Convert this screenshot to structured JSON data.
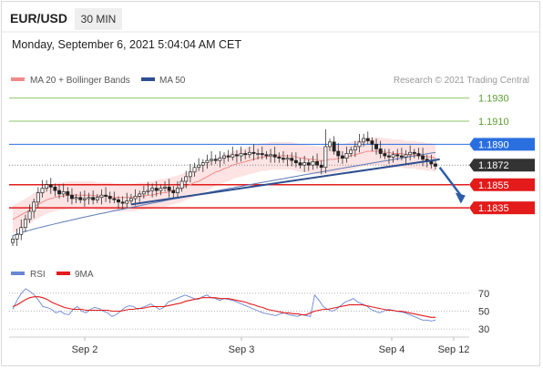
{
  "header": {
    "symbol": "EUR/USD",
    "timeframe": "30 MIN",
    "datetime": "Monday, September 6, 2021 5:04:04 AM CET"
  },
  "legend": {
    "ma20": {
      "label": "MA 20 + Bollinger Bands",
      "color": "#f08a8a"
    },
    "ma50": {
      "label": "MA 50",
      "color": "#2e4f8f"
    },
    "copyright": "Research © 2021 Trading Central"
  },
  "rsi_legend": {
    "rsi": {
      "label": "RSI",
      "color": "#6b86d6"
    },
    "ma9": {
      "label": "9MA",
      "color": "#e41b1b"
    }
  },
  "chart_data": [
    {
      "type": "candlestick",
      "ylim": [
        1.1802,
        1.1936
      ],
      "price_levels": [
        {
          "value": 1.193,
          "label": "1.1930",
          "color": "#8fc46a",
          "kind": "resistance-text"
        },
        {
          "value": 1.191,
          "label": "1.1910",
          "color": "#8fc46a",
          "kind": "resistance-text"
        },
        {
          "value": 1.189,
          "label": "1.1890",
          "color": "#2a6fe0",
          "kind": "badge"
        },
        {
          "value": 1.1872,
          "label": "1.1872",
          "color": "#333333",
          "kind": "badge"
        },
        {
          "value": 1.1855,
          "label": "1.1855",
          "color": "#e31b1b",
          "kind": "badge"
        },
        {
          "value": 1.1835,
          "label": "1.1835",
          "color": "#e31b1b",
          "kind": "badge"
        }
      ],
      "x_ticks": [
        "Sep 2",
        "Sep 3",
        "Sep 4",
        "Sep 12"
      ],
      "close": [
        1.1808,
        1.1812,
        1.1818,
        1.1825,
        1.1832,
        1.184,
        1.1848,
        1.1852,
        1.1855,
        1.1853,
        1.185,
        1.1847,
        1.1849,
        1.1846,
        1.1843,
        1.1844,
        1.1842,
        1.1843,
        1.1844,
        1.1842,
        1.1844,
        1.1846,
        1.1845,
        1.1843,
        1.1842,
        1.184,
        1.1839,
        1.1841,
        1.1843,
        1.1845,
        1.1847,
        1.1849,
        1.185,
        1.1852,
        1.185,
        1.1852,
        1.1853,
        1.185,
        1.1848,
        1.1852,
        1.1858,
        1.1862,
        1.1866,
        1.187,
        1.1872,
        1.1874,
        1.1876,
        1.1877,
        1.1876,
        1.1878,
        1.188,
        1.1879,
        1.1881,
        1.188,
        1.1882,
        1.1881,
        1.1883,
        1.1882,
        1.1882,
        1.1881,
        1.188,
        1.1881,
        1.1879,
        1.1878,
        1.1877,
        1.1878,
        1.1876,
        1.1874,
        1.1872,
        1.1874,
        1.1872,
        1.1875,
        1.1872,
        1.187,
        1.1888,
        1.1892,
        1.1884,
        1.188,
        1.1878,
        1.1882,
        1.1885,
        1.1888,
        1.1892,
        1.1895,
        1.1893,
        1.189,
        1.1886,
        1.1882,
        1.188,
        1.1879,
        1.1881,
        1.188,
        1.1879,
        1.1881,
        1.1883,
        1.1882,
        1.188,
        1.1877,
        1.1875,
        1.1873,
        1.1871
      ],
      "ma20": [
        1.1825,
        1.1827,
        1.1829,
        1.1831,
        1.1833,
        1.1836,
        1.1838,
        1.184,
        1.1842,
        1.1843,
        1.1844,
        1.1845,
        1.1845,
        1.1846,
        1.1846,
        1.1846,
        1.1846,
        1.1846,
        1.1846,
        1.1846,
        1.1845,
        1.1845,
        1.1845,
        1.1845,
        1.1844,
        1.1844,
        1.1844,
        1.1844,
        1.1844,
        1.1844,
        1.1845,
        1.1845,
        1.1846,
        1.1846,
        1.1847,
        1.1848,
        1.1848,
        1.1849,
        1.185,
        1.1851,
        1.1852,
        1.1854,
        1.1855,
        1.1857,
        1.1858,
        1.186,
        1.1862,
        1.1864,
        1.1866,
        1.1867,
        1.1869,
        1.187,
        1.1872,
        1.1873,
        1.1874,
        1.1875,
        1.1876,
        1.1877,
        1.1878,
        1.1879,
        1.1879,
        1.188,
        1.188,
        1.188,
        1.188,
        1.188,
        1.188,
        1.1879,
        1.1878,
        1.1878,
        1.1877,
        1.1877,
        1.1876,
        1.1876,
        1.1876,
        1.1877,
        1.1877,
        1.1878,
        1.1878,
        1.1879,
        1.188,
        1.1881,
        1.1882,
        1.1883,
        1.1884,
        1.1884,
        1.1884,
        1.1884,
        1.1883,
        1.1883,
        1.1882,
        1.1882,
        1.1882,
        1.1881,
        1.1881,
        1.1881,
        1.188,
        1.188,
        1.1879,
        1.1879,
        1.1878
      ],
      "band_width": 0.0012,
      "ma50_start": 1.1811,
      "ma50_end": 1.1883,
      "trendline": {
        "from": [
          28,
          1.1838
        ],
        "to": [
          101,
          1.1877
        ],
        "color": "#2e4f8f"
      },
      "forecast_arrow": {
        "from": [
          101,
          1.187
        ],
        "to": [
          106,
          1.1841
        ],
        "color": "#2a5ca8"
      }
    },
    {
      "type": "line",
      "title": "RSI",
      "ylim": [
        25,
        80
      ],
      "y_ticks": [
        70,
        50,
        30
      ],
      "series": [
        {
          "name": "RSI",
          "color": "#6b86d6",
          "values": [
            52,
            62,
            70,
            75,
            72,
            68,
            62,
            55,
            54,
            52,
            48,
            50,
            47,
            46,
            52,
            55,
            50,
            48,
            52,
            54,
            53,
            50,
            48,
            44,
            46,
            50,
            54,
            56,
            55,
            52,
            54,
            56,
            58,
            55,
            52,
            54,
            60,
            62,
            64,
            66,
            68,
            66,
            64,
            63,
            66,
            68,
            65,
            64,
            62,
            64,
            63,
            62,
            60,
            58,
            56,
            54,
            52,
            50,
            48,
            47,
            46,
            45,
            47,
            48,
            46,
            45,
            44,
            46,
            45,
            44,
            68,
            62,
            55,
            52,
            50,
            52,
            56,
            60,
            62,
            64,
            60,
            58,
            56,
            52,
            50,
            48,
            50,
            52,
            51,
            50,
            49,
            48,
            46,
            44,
            42,
            40,
            40,
            39,
            40
          ]
        },
        {
          "name": "9MA",
          "color": "#e41b1b",
          "values": [
            55,
            57,
            60,
            63,
            65,
            66,
            66,
            65,
            63,
            60,
            58,
            56,
            54,
            53,
            52,
            52,
            52,
            51,
            51,
            51,
            51,
            51,
            51,
            50,
            50,
            50,
            51,
            52,
            52,
            53,
            53,
            54,
            55,
            55,
            55,
            55,
            56,
            57,
            58,
            59,
            61,
            62,
            63,
            64,
            65,
            65,
            65,
            65,
            64,
            64,
            64,
            63,
            62,
            61,
            60,
            58,
            57,
            55,
            54,
            52,
            51,
            50,
            49,
            48,
            48,
            47,
            47,
            46,
            46,
            48,
            50,
            51,
            52,
            52,
            53,
            54,
            55,
            56,
            57,
            57,
            57,
            57,
            56,
            55,
            54,
            53,
            52,
            51,
            51,
            50,
            50,
            49,
            48,
            47,
            46,
            45,
            44,
            43,
            43
          ]
        }
      ]
    }
  ]
}
